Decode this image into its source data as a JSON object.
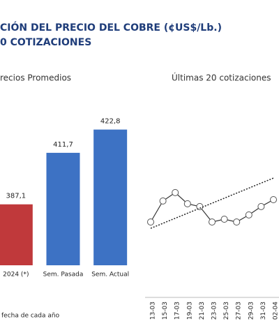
{
  "header": {
    "title": "CIÓN DEL PRECIO DEL COBRE (¢US$/Lb.)",
    "subtitle": "0 COTIZACIONES"
  },
  "footnote": "fecha de cada año",
  "chart_data": [
    {
      "type": "bar",
      "title": "recios Promedios",
      "categories": [
        "2024 (*)",
        "Sem. Pasada",
        "Sem. Actual"
      ],
      "values": [
        387.1,
        411.7,
        422.8
      ],
      "value_labels": [
        "387,1",
        "411,7",
        "422,8"
      ],
      "colors": [
        "#c0393b",
        "#3d72c4",
        "#3d72c4"
      ],
      "ylim": [
        358,
        430
      ]
    },
    {
      "type": "line",
      "title": "Últimas 20 cotizaciones",
      "categories": [
        "13-03",
        "15-03",
        "17-03",
        "19-03",
        "21-03",
        "23-03",
        "25-03",
        "27-03",
        "29-03",
        "31-03",
        "02-04"
      ],
      "series": [
        {
          "color": "#333333",
          "values": [
            404.5,
            415.8,
            420.3,
            414.3,
            412.8,
            404.5,
            406,
            404.5,
            408.3,
            412.8,
            416.5
          ]
        },
        {
          "color": "#222222",
          "dashed": true,
          "values": [
            401.1,
            403.8,
            406.5,
            409.2,
            411.9,
            414.6,
            417.3,
            420.0,
            422.7,
            425.4,
            428.1
          ]
        }
      ],
      "ylim": [
        400,
        430
      ]
    }
  ]
}
